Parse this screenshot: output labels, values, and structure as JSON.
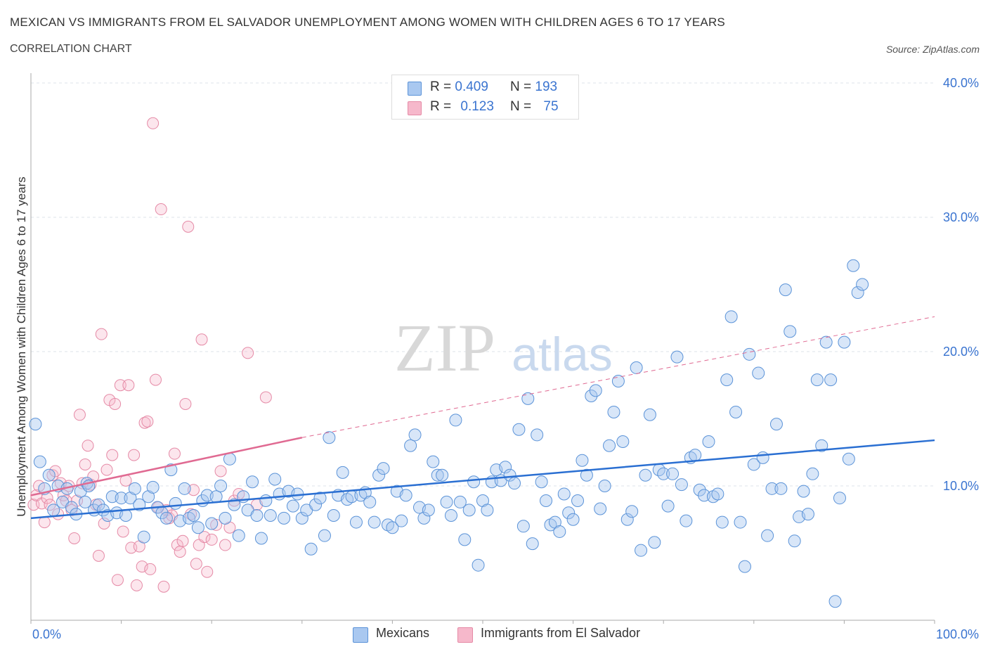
{
  "header": {
    "title": "MEXICAN VS IMMIGRANTS FROM EL SALVADOR UNEMPLOYMENT AMONG WOMEN WITH CHILDREN AGES 6 TO 17 YEARS",
    "subtitle": "CORRELATION CHART",
    "source": "Source: ZipAtlas.com"
  },
  "watermark": {
    "zip": "ZIP",
    "atlas": "atlas"
  },
  "legend_top": [
    {
      "r_label": "R = ",
      "r_value": "0.409",
      "n_label": "N = ",
      "n_value": "193",
      "color": "#a9c8f0"
    },
    {
      "r_label": "R = ",
      "r_value": "0.123",
      "n_label": "N = ",
      "n_value": "75",
      "color": "#f6b8cb"
    }
  ],
  "legend_bottom": [
    {
      "label": "Mexicans",
      "color": "#a9c8f0"
    },
    {
      "label": "Immigrants from El Salvador",
      "color": "#f6b8cb"
    }
  ],
  "colors": {
    "mexicans_fill": "#a9c8f0",
    "mexicans_stroke": "#5b93d8",
    "mexicans_line": "#2a6fd2",
    "salvador_fill": "#f6b8cb",
    "salvador_stroke": "#e58aa6",
    "salvador_line": "#e06a92",
    "axis_tick_text": "#3a74d0",
    "grid": "#dde3ea"
  },
  "chart_data": {
    "type": "scatter",
    "title": "MEXICAN VS IMMIGRANTS FROM EL SALVADOR UNEMPLOYMENT AMONG WOMEN WITH CHILDREN AGES 6 TO 17 YEARS",
    "xlabel": "",
    "ylabel": "Unemployment Among Women with Children Ages 6 to 17 years",
    "xlim": [
      0,
      100
    ],
    "ylim": [
      0,
      40
    ],
    "x_tick_labels": [
      "0.0%",
      "100.0%"
    ],
    "y_ticks": [
      10,
      20,
      30,
      40
    ],
    "y_tick_labels": [
      "10.0%",
      "20.0%",
      "30.0%",
      "40.0%"
    ],
    "grid": true,
    "legend_position": "top-center",
    "series": [
      {
        "name": "Mexicans",
        "trend": {
          "x": [
            0,
            100
          ],
          "y": [
            7.6,
            13.4
          ],
          "style": "solid"
        },
        "points": [
          [
            0.5,
            14.6
          ],
          [
            1,
            11.8
          ],
          [
            1.5,
            9.8
          ],
          [
            2,
            10.8
          ],
          [
            2.5,
            8.2
          ],
          [
            3,
            10
          ],
          [
            3.5,
            8.8
          ],
          [
            4,
            9.8
          ],
          [
            4.5,
            8.4
          ],
          [
            5,
            7.9
          ],
          [
            5.5,
            9.6
          ],
          [
            6,
            8.8
          ],
          [
            6.2,
            10.2
          ],
          [
            6.4,
            10
          ],
          [
            7,
            8.2
          ],
          [
            7.5,
            8.6
          ],
          [
            8,
            8.2
          ],
          [
            8.5,
            7.8
          ],
          [
            9,
            9.2
          ],
          [
            9.5,
            8
          ],
          [
            10,
            9.1
          ],
          [
            10.5,
            7.8
          ],
          [
            11,
            9.1
          ],
          [
            11.5,
            9.8
          ],
          [
            12,
            8.6
          ],
          [
            12.5,
            6.2
          ],
          [
            13,
            9.2
          ],
          [
            13.5,
            9.9
          ],
          [
            14,
            8.4
          ],
          [
            14.5,
            8
          ],
          [
            15,
            7.6
          ],
          [
            15.5,
            11.2
          ],
          [
            16,
            8.7
          ],
          [
            16.5,
            7.4
          ],
          [
            17,
            9.8
          ],
          [
            17.5,
            7.6
          ],
          [
            18,
            7.8
          ],
          [
            18.5,
            6.9
          ],
          [
            19,
            8.9
          ],
          [
            19.5,
            9.3
          ],
          [
            20,
            7.2
          ],
          [
            20.5,
            9.2
          ],
          [
            21,
            10
          ],
          [
            21.5,
            7.6
          ],
          [
            22,
            12
          ],
          [
            22.5,
            8.6
          ],
          [
            23,
            6.3
          ],
          [
            23.5,
            9.2
          ],
          [
            24,
            8.2
          ],
          [
            24.5,
            10.3
          ],
          [
            25,
            7.8
          ],
          [
            25.5,
            6.1
          ],
          [
            26,
            8.9
          ],
          [
            26.5,
            7.8
          ],
          [
            27,
            10.5
          ],
          [
            27.5,
            9.4
          ],
          [
            28,
            7.6
          ],
          [
            28.5,
            9.6
          ],
          [
            29,
            8.5
          ],
          [
            29.5,
            9.4
          ],
          [
            30,
            7.6
          ],
          [
            30.5,
            8.2
          ],
          [
            31,
            5.3
          ],
          [
            31.5,
            8.6
          ],
          [
            32,
            9.1
          ],
          [
            32.5,
            6.3
          ],
          [
            33,
            13.6
          ],
          [
            33.5,
            7.8
          ],
          [
            34,
            9.3
          ],
          [
            34.5,
            11
          ],
          [
            35,
            9
          ],
          [
            35.5,
            9.2
          ],
          [
            36,
            7.3
          ],
          [
            36.5,
            9.3
          ],
          [
            37,
            9.5
          ],
          [
            37.5,
            8.8
          ],
          [
            38,
            7.3
          ],
          [
            38.5,
            10.8
          ],
          [
            39,
            11.3
          ],
          [
            39.5,
            7.1
          ],
          [
            40,
            6.9
          ],
          [
            40.5,
            9.6
          ],
          [
            41,
            7.4
          ],
          [
            41.5,
            9.3
          ],
          [
            42,
            13
          ],
          [
            42.5,
            13.8
          ],
          [
            43,
            8.4
          ],
          [
            43.5,
            7.6
          ],
          [
            44,
            8.2
          ],
          [
            44.5,
            11.8
          ],
          [
            45,
            10.8
          ],
          [
            45.5,
            10.8
          ],
          [
            46,
            8.8
          ],
          [
            46.5,
            7.8
          ],
          [
            47,
            14.9
          ],
          [
            47.5,
            8.8
          ],
          [
            48,
            6
          ],
          [
            48.5,
            8.2
          ],
          [
            49,
            10.3
          ],
          [
            49.5,
            4.1
          ],
          [
            50,
            8.9
          ],
          [
            50.5,
            8.2
          ],
          [
            51,
            10.3
          ],
          [
            51.5,
            11.2
          ],
          [
            52,
            10.4
          ],
          [
            52.5,
            11.4
          ],
          [
            53,
            10.8
          ],
          [
            53.5,
            10.2
          ],
          [
            54,
            14.2
          ],
          [
            54.5,
            7
          ],
          [
            55,
            16.5
          ],
          [
            55.5,
            5.7
          ],
          [
            56,
            13.8
          ],
          [
            56.5,
            10.3
          ],
          [
            57,
            8.9
          ],
          [
            57.5,
            7.1
          ],
          [
            58,
            7.3
          ],
          [
            58.5,
            6.6
          ],
          [
            59,
            9.4
          ],
          [
            59.5,
            8
          ],
          [
            60,
            7.5
          ],
          [
            60.5,
            8.9
          ],
          [
            61,
            11.9
          ],
          [
            61.5,
            10.8
          ],
          [
            62,
            16.7
          ],
          [
            62.5,
            17.1
          ],
          [
            63,
            8.3
          ],
          [
            63.5,
            10
          ],
          [
            64,
            13
          ],
          [
            64.5,
            15.5
          ],
          [
            65,
            17.8
          ],
          [
            65.5,
            13.3
          ],
          [
            66,
            7.5
          ],
          [
            66.5,
            8.1
          ],
          [
            67,
            18.8
          ],
          [
            67.5,
            5.2
          ],
          [
            68,
            10.8
          ],
          [
            68.5,
            15.3
          ],
          [
            69,
            5.8
          ],
          [
            69.5,
            11.2
          ],
          [
            70,
            10.9
          ],
          [
            70.5,
            8.5
          ],
          [
            71,
            10.9
          ],
          [
            71.5,
            19.6
          ],
          [
            72,
            10.1
          ],
          [
            72.5,
            7.4
          ],
          [
            73,
            12.1
          ],
          [
            73.5,
            12.3
          ],
          [
            74,
            9.7
          ],
          [
            74.5,
            9.3
          ],
          [
            75,
            13.3
          ],
          [
            75.5,
            9.2
          ],
          [
            76,
            9.4
          ],
          [
            76.5,
            7.3
          ],
          [
            77,
            17.9
          ],
          [
            77.5,
            22.6
          ],
          [
            78,
            15.5
          ],
          [
            78.5,
            7.3
          ],
          [
            79,
            4
          ],
          [
            79.5,
            19.8
          ],
          [
            80,
            11.6
          ],
          [
            80.5,
            18.4
          ],
          [
            81,
            12.1
          ],
          [
            81.5,
            6.3
          ],
          [
            82,
            9.8
          ],
          [
            82.5,
            14.6
          ],
          [
            83,
            9.8
          ],
          [
            83.5,
            24.6
          ],
          [
            84,
            21.5
          ],
          [
            84.5,
            5.9
          ],
          [
            85,
            7.7
          ],
          [
            85.5,
            9.6
          ],
          [
            86,
            7.9
          ],
          [
            86.5,
            10.9
          ],
          [
            87,
            17.9
          ],
          [
            87.5,
            13
          ],
          [
            88,
            20.7
          ],
          [
            88.5,
            17.9
          ],
          [
            89,
            1.4
          ],
          [
            89.5,
            9.1
          ],
          [
            90,
            20.7
          ],
          [
            90.5,
            12
          ],
          [
            91,
            26.4
          ],
          [
            91.5,
            24.4
          ],
          [
            92,
            25
          ]
        ]
      },
      {
        "name": "Immigrants from El Salvador",
        "trend": {
          "x": [
            0,
            30
          ],
          "y": [
            9.3,
            13.6
          ],
          "style": "solid",
          "extension": {
            "x": [
              30,
              100
            ],
            "y": [
              13.6,
              22.6
            ],
            "style": "dashed"
          }
        },
        "points": [
          [
            0.3,
            8.6
          ],
          [
            0.6,
            9.3
          ],
          [
            0.9,
            10
          ],
          [
            1.2,
            8.7
          ],
          [
            1.5,
            7.3
          ],
          [
            1.8,
            9.1
          ],
          [
            2.1,
            8.6
          ],
          [
            2.4,
            10.8
          ],
          [
            2.7,
            11.1
          ],
          [
            3,
            7.9
          ],
          [
            3.3,
            10.2
          ],
          [
            3.6,
            9.3
          ],
          [
            3.9,
            8.9
          ],
          [
            4.2,
            10
          ],
          [
            4.5,
            8.2
          ],
          [
            4.8,
            6.1
          ],
          [
            5.1,
            8.9
          ],
          [
            5.4,
            15.3
          ],
          [
            5.7,
            10.2
          ],
          [
            6,
            11.6
          ],
          [
            6.3,
            13
          ],
          [
            6.6,
            10.1
          ],
          [
            6.9,
            10.7
          ],
          [
            7.2,
            8.6
          ],
          [
            7.5,
            4.8
          ],
          [
            7.8,
            21.3
          ],
          [
            8.1,
            7.2
          ],
          [
            8.4,
            11.2
          ],
          [
            8.7,
            16.4
          ],
          [
            9,
            12.3
          ],
          [
            9.3,
            16.1
          ],
          [
            9.6,
            3
          ],
          [
            9.9,
            17.5
          ],
          [
            10.2,
            6.6
          ],
          [
            10.5,
            10.4
          ],
          [
            10.8,
            17.5
          ],
          [
            11.1,
            5.4
          ],
          [
            11.4,
            12.3
          ],
          [
            11.7,
            2.6
          ],
          [
            12,
            5.5
          ],
          [
            12.3,
            4
          ],
          [
            12.6,
            14.7
          ],
          [
            12.9,
            14.8
          ],
          [
            13.2,
            3.8
          ],
          [
            13.5,
            37
          ],
          [
            13.8,
            17.9
          ],
          [
            14.1,
            8.4
          ],
          [
            14.4,
            30.6
          ],
          [
            14.7,
            2.5
          ],
          [
            15,
            8.2
          ],
          [
            15.3,
            7.6
          ],
          [
            15.6,
            7.8
          ],
          [
            15.9,
            12.4
          ],
          [
            16.2,
            5.6
          ],
          [
            16.5,
            5.1
          ],
          [
            16.8,
            5.9
          ],
          [
            17.1,
            16.1
          ],
          [
            17.4,
            29.3
          ],
          [
            17.7,
            7.9
          ],
          [
            18,
            9.7
          ],
          [
            18.3,
            4.2
          ],
          [
            18.6,
            5.6
          ],
          [
            18.9,
            20.9
          ],
          [
            19.2,
            6.2
          ],
          [
            19.5,
            3.6
          ],
          [
            20,
            6
          ],
          [
            20.5,
            7.1
          ],
          [
            21,
            11.1
          ],
          [
            21.5,
            5.6
          ],
          [
            22,
            6.9
          ],
          [
            22.5,
            8.9
          ],
          [
            23,
            9.4
          ],
          [
            24,
            19.9
          ],
          [
            25,
            8.6
          ],
          [
            26,
            16.6
          ]
        ]
      }
    ]
  }
}
